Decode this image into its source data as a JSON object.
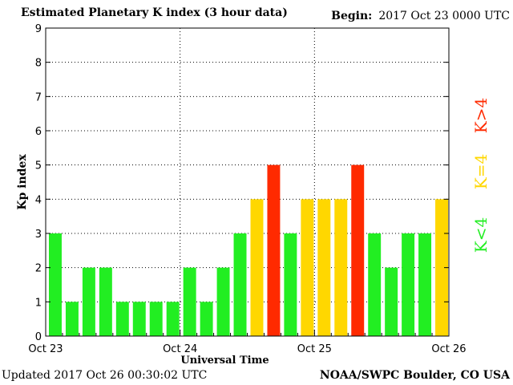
{
  "header": {
    "title": "Estimated Planetary K index (3 hour data)",
    "begin_label": "Begin:",
    "begin_value": "2017 Oct 23 0000 UTC"
  },
  "footer": {
    "updated": "Updated 2017 Oct 26 00:30:02 UTC",
    "source": "NOAA/SWPC Boulder, CO USA"
  },
  "colors": {
    "low": "#22ee22",
    "moderate": "#ffd700",
    "high": "#ff2a00"
  },
  "chart_data": {
    "type": "bar",
    "ylabel": "Kp index",
    "xlabel": "Universal Time",
    "ylim": [
      0,
      9
    ],
    "yticks": [
      "0",
      "1",
      "2",
      "3",
      "4",
      "5",
      "6",
      "7",
      "8",
      "9"
    ],
    "xtick_labels": [
      "Oct 23",
      "Oct 24",
      "Oct 25",
      "Oct 26"
    ],
    "values": [
      3,
      1,
      2,
      2,
      1,
      1,
      1,
      1,
      2,
      1,
      2,
      3,
      4,
      5,
      3,
      4,
      4,
      4,
      5,
      3,
      2,
      3,
      3,
      4
    ],
    "grid": true,
    "legend": {
      "placement": "right",
      "entries": [
        {
          "label": "K<4",
          "color": "#22ee22"
        },
        {
          "label": "K=4",
          "color": "#ffd700"
        },
        {
          "label": "K>4",
          "color": "#ff2a00"
        }
      ]
    }
  }
}
